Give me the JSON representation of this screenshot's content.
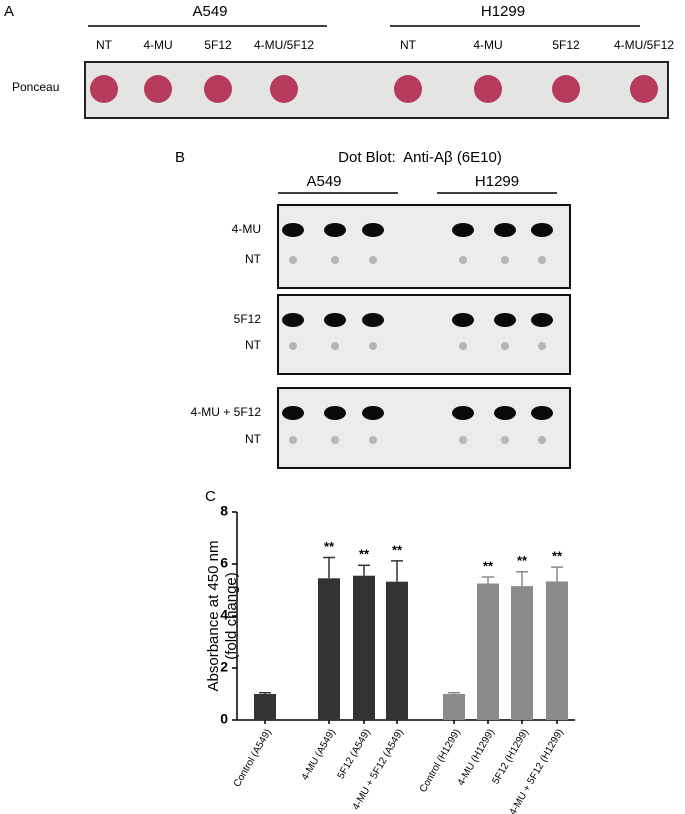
{
  "panel_a": {
    "letter": "A",
    "row_label": "Ponceau",
    "groups": [
      {
        "name": "A549",
        "lanes": [
          "NT",
          "4-MU",
          "5F12",
          "4-MU/5F12"
        ]
      },
      {
        "name": "H1299",
        "lanes": [
          "NT",
          "4-MU",
          "5F12",
          "4-MU/5F12"
        ]
      }
    ]
  },
  "panel_b": {
    "letter": "B",
    "title": "Dot Blot:  Anti-Aβ (6E10)",
    "groups": [
      "A549",
      "H1299"
    ],
    "blots": [
      {
        "rows": [
          "4-MU",
          "NT"
        ]
      },
      {
        "rows": [
          "5F12",
          "NT"
        ]
      },
      {
        "rows": [
          "4-MU + 5F12",
          "NT"
        ]
      }
    ]
  },
  "chart_data": {
    "type": "bar",
    "panel_label": "C",
    "y_label": [
      "Absorbance at 450 nm",
      "(fold change)"
    ],
    "categories": [
      "Control (A549)",
      "4-MU (A549)",
      "5F12 (A549)",
      "4-MU + 5F12 (A549)",
      "Control (H1299)",
      "4-MU (H1299)",
      "5F12 (H1299)",
      "4-MU + 5F12 (H1299)"
    ],
    "values": [
      1.0,
      5.45,
      5.55,
      5.32,
      1.0,
      5.25,
      5.15,
      5.33
    ],
    "errors": [
      0.05,
      0.8,
      0.4,
      0.8,
      0.05,
      0.25,
      0.55,
      0.55
    ],
    "colors": [
      "#333333",
      "#333333",
      "#333333",
      "#333333",
      "#8a8a8a",
      "#8a8a8a",
      "#8a8a8a",
      "#8a8a8a"
    ],
    "annotations": [
      null,
      "**",
      "**",
      "**",
      null,
      "**",
      "**",
      "**"
    ],
    "ylim": [
      0,
      8
    ],
    "yticks": [
      0,
      2,
      4,
      6,
      8
    ]
  }
}
